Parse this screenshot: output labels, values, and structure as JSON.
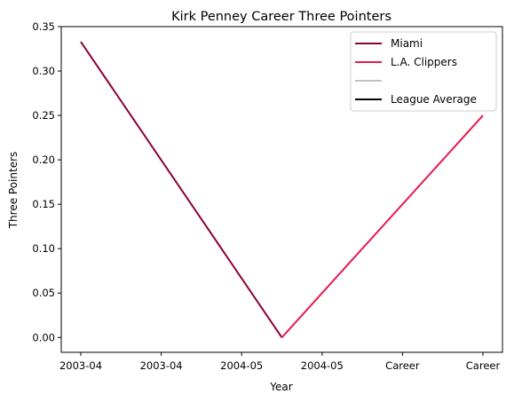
{
  "chart_data": {
    "type": "line",
    "title": "Kirk Penney Career Three Pointers",
    "xlabel": "Year",
    "ylabel": "Three Pointers",
    "x_tick_labels": [
      "2003-04",
      "2003-04",
      "2004-05",
      "2004-05",
      "Career",
      "Career"
    ],
    "y_tick_labels": [
      "0.00",
      "0.05",
      "0.10",
      "0.15",
      "0.20",
      "0.25",
      "0.30",
      "0.35"
    ],
    "ylim": [
      -0.0167,
      0.35
    ],
    "x_count": 6,
    "grid": false,
    "legend_position": "top-right",
    "series": [
      {
        "name": "Miami",
        "color": "#8B0038",
        "points": [
          [
            0,
            0.333
          ],
          [
            2.5,
            0.0
          ]
        ]
      },
      {
        "name": "L.A. Clippers",
        "color": "#E8194E",
        "points": [
          [
            2.5,
            0.0
          ],
          [
            5,
            0.25
          ]
        ]
      },
      {
        "name": "",
        "color": "#C0C0C0",
        "points": []
      },
      {
        "name": "League Average",
        "color": "#000000",
        "points": []
      }
    ]
  }
}
